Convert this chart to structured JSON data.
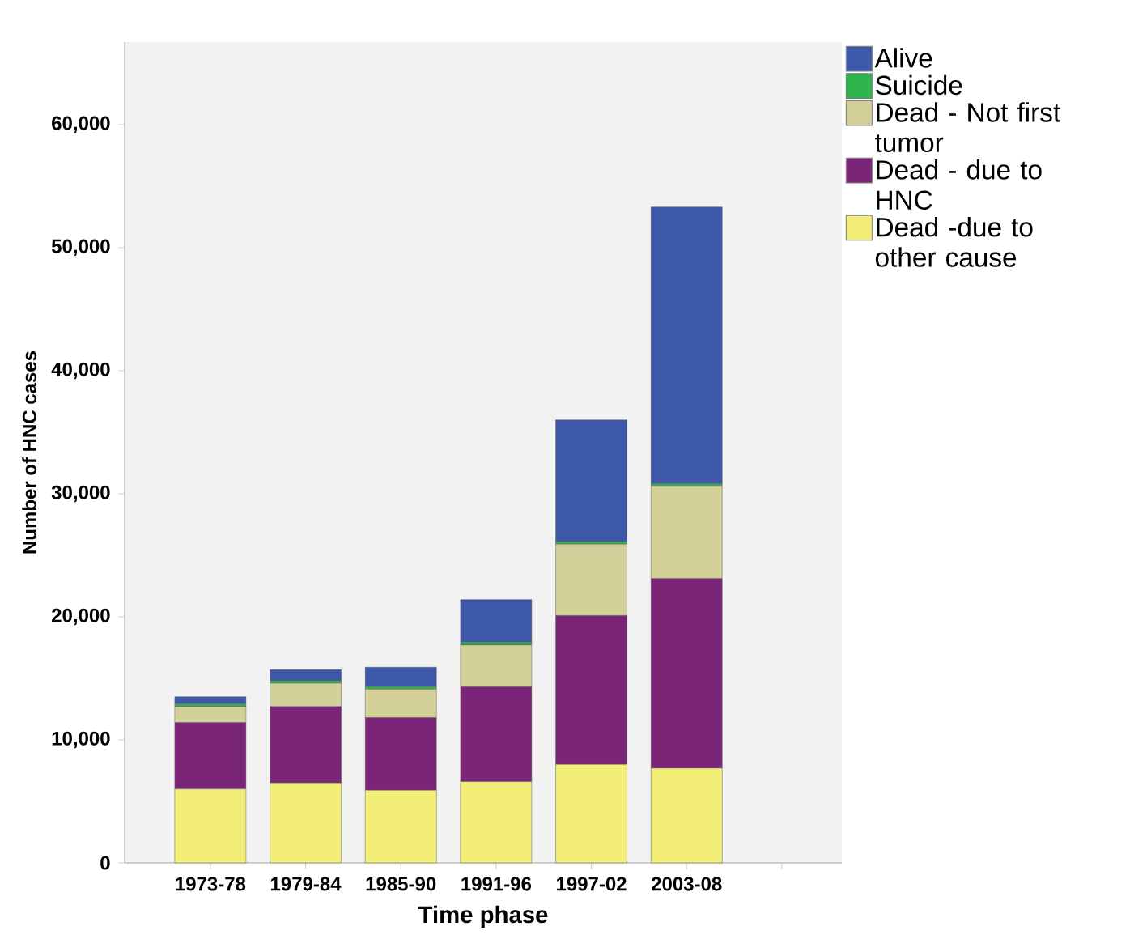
{
  "chart_data": {
    "type": "bar",
    "stacked": true,
    "xlabel": "Time phase",
    "ylabel": "Number of HNC cases",
    "categories": [
      "1973-78",
      "1979-84",
      "1985-90",
      "1991-96",
      "1997-02",
      "2003-08",
      null
    ],
    "series": [
      {
        "name": "Dead -due to other cause",
        "color": "#f3ee78",
        "values": [
          6000,
          6500,
          5900,
          6600,
          8000,
          7700,
          null
        ]
      },
      {
        "name": "Dead - due to HNC",
        "color": "#7b2579",
        "values": [
          5400,
          6200,
          5900,
          7700,
          12100,
          15400,
          null
        ]
      },
      {
        "name": "Dead - Not first tumor",
        "color": "#d3cf98",
        "values": [
          1300,
          1900,
          2300,
          3400,
          5800,
          7500,
          null
        ]
      },
      {
        "name": "Suicide",
        "color": "#2fb34a",
        "values": [
          200,
          200,
          200,
          200,
          200,
          200,
          null
        ]
      },
      {
        "name": "Alive",
        "color": "#3e58a8",
        "values": [
          600,
          900,
          1600,
          3500,
          9900,
          22500,
          null
        ]
      }
    ],
    "ylim": [
      0,
      66700
    ],
    "yticks": [
      0,
      {
        "value": 10000,
        "label": "10,000"
      },
      {
        "value": 20000,
        "label": "20,000"
      },
      {
        "value": 30000,
        "label": "30,000"
      },
      {
        "value": 40000,
        "label": "40,000"
      },
      {
        "value": 50000,
        "label": "50,000"
      },
      {
        "value": 60000,
        "label": "60,000"
      }
    ],
    "legend": "right"
  }
}
